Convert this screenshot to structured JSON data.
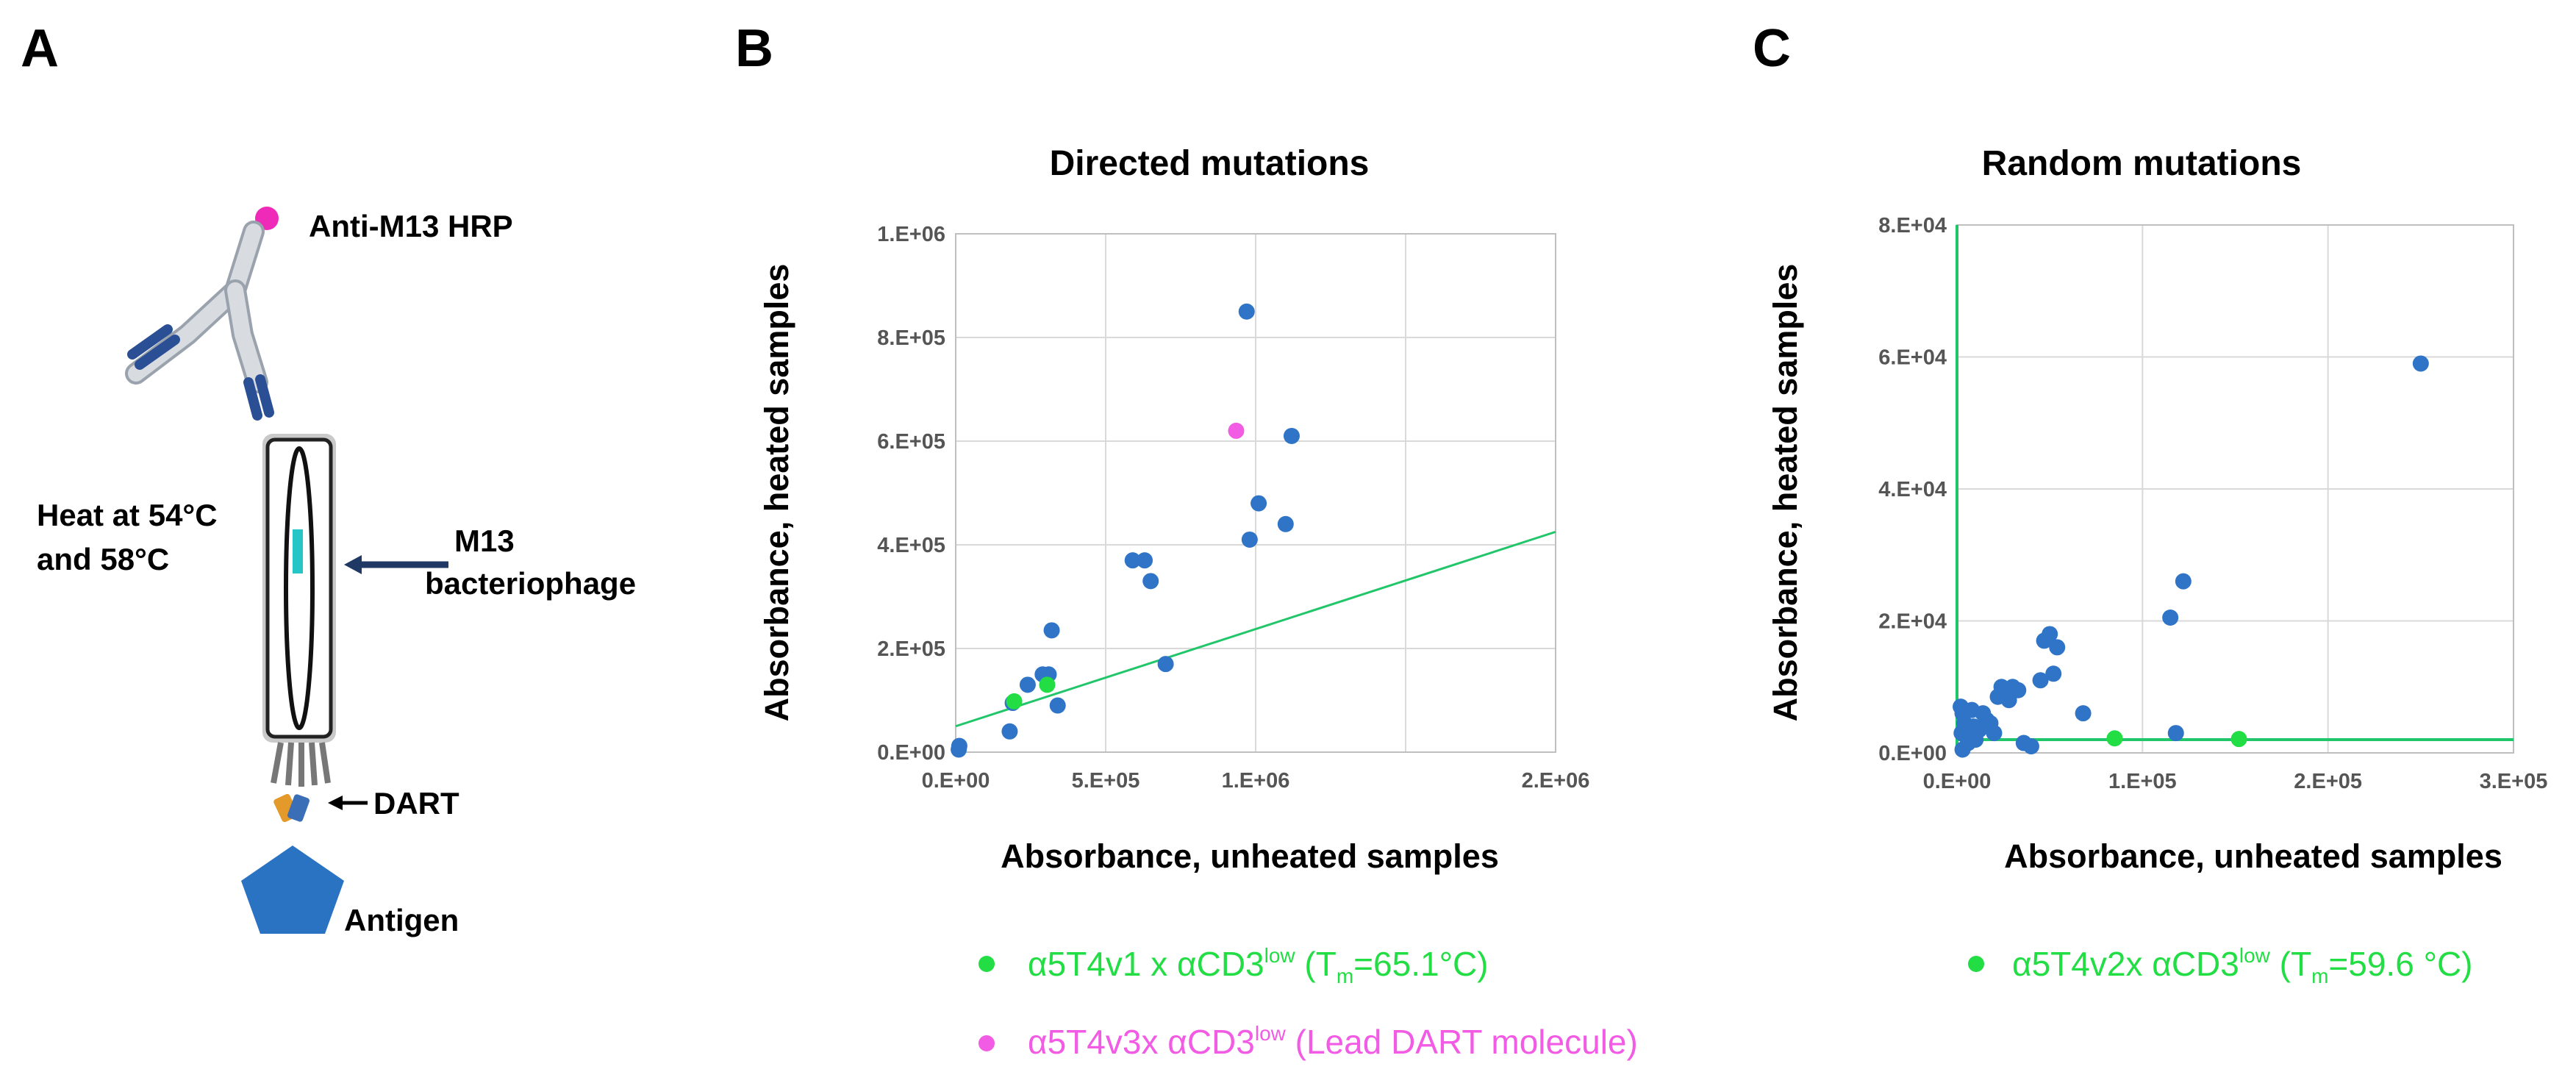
{
  "panel_labels": {
    "a": "A",
    "b": "B",
    "c": "C"
  },
  "diagram": {
    "hrp_label": "Anti-M13 HRP",
    "heat_label_line1": "Heat at 54°C",
    "heat_label_line2": "and 58°C",
    "phage_label_line1": "M13",
    "phage_label_line2": "bacteriophage",
    "dart_label": "DART",
    "antigen_label": "Antigen"
  },
  "colors": {
    "point": "#2f74c7",
    "green": "#22dd44",
    "magenta": "#f25be4",
    "trendline": "#22c66a",
    "hrp": "#f02ab8",
    "dart_orange": "#e49a2a",
    "antigen": "#2a72c2"
  },
  "chart_data": [
    {
      "type": "scatter",
      "title": "Directed mutations",
      "xlabel": "Absorbance, unheated samples",
      "ylabel": "Absorbance,  heated samples",
      "xlim": [
        0,
        2000000
      ],
      "ylim": [
        0,
        1000000
      ],
      "xticks": [
        0,
        500000,
        1000000,
        1500000,
        2000000
      ],
      "xtick_labels": [
        "0.E+00",
        "5.E+05",
        "1.E+06",
        "",
        "2.E+06"
      ],
      "yticks": [
        0,
        200000,
        400000,
        600000,
        800000,
        1000000
      ],
      "ytick_labels": [
        "0.E+00",
        "2.E+05",
        "4.E+05",
        "6.E+05",
        "8.E+05",
        "1.E+06"
      ],
      "trendline": {
        "x": [
          0,
          2000000
        ],
        "y": [
          50000,
          425000
        ]
      },
      "series": [
        {
          "name": "samples",
          "color": "point",
          "points": [
            [
              10000,
              5000
            ],
            [
              12000,
              12000
            ],
            [
              180000,
              40000
            ],
            [
              190000,
              95000
            ],
            [
              240000,
              130000
            ],
            [
              290000,
              150000
            ],
            [
              310000,
              150000
            ],
            [
              320000,
              235000
            ],
            [
              340000,
              90000
            ],
            [
              590000,
              370000
            ],
            [
              630000,
              370000
            ],
            [
              650000,
              330000
            ],
            [
              700000,
              170000
            ],
            [
              970000,
              850000
            ],
            [
              980000,
              410000
            ],
            [
              1010000,
              480000
            ],
            [
              1100000,
              440000
            ],
            [
              1120000,
              610000
            ]
          ]
        },
        {
          "name": "α5T4v1 x αCD3low",
          "color": "green",
          "points": [
            [
              195000,
              98000
            ],
            [
              305000,
              130000
            ]
          ]
        },
        {
          "name": "α5T4v3x αCD3low",
          "color": "magenta",
          "points": [
            [
              935000,
              620000
            ]
          ]
        }
      ],
      "legend": [
        {
          "color": "green",
          "prefix": "α5T4v1 x αCD3",
          "sup": "low",
          "mid": " (T",
          "sub": "m",
          "suffix": "=65.1°C)"
        },
        {
          "color": "magenta",
          "prefix": "α5T4v3x αCD3",
          "sup": "low",
          "mid": " (Lead DART molecule)",
          "sub": "",
          "suffix": ""
        }
      ]
    },
    {
      "type": "scatter",
      "title": "Random mutations",
      "xlabel": "Absorbance, unheated samples",
      "ylabel": "Absorbance, heated samples",
      "xlim": [
        0,
        300000
      ],
      "ylim": [
        0,
        80000
      ],
      "xticks": [
        0,
        100000,
        200000,
        300000
      ],
      "xtick_labels": [
        "0.E+00",
        "1.E+05",
        "2.E+05",
        "3.E+05"
      ],
      "yticks": [
        0,
        20000,
        40000,
        60000,
        80000
      ],
      "ytick_labels": [
        "0.E+00",
        "2.E+04",
        "4.E+04",
        "6.E+04",
        "8.E+04"
      ],
      "hline": 2000,
      "vline": 0,
      "series": [
        {
          "name": "samples",
          "color": "point",
          "points": [
            [
              2000,
              7000
            ],
            [
              3000,
              6000
            ],
            [
              4000,
              4500
            ],
            [
              2500,
              3000
            ],
            [
              5000,
              2500
            ],
            [
              6000,
              1500
            ],
            [
              3000,
              500
            ],
            [
              8000,
              6500
            ],
            [
              9000,
              4000
            ],
            [
              10000,
              2000
            ],
            [
              12000,
              3500
            ],
            [
              14000,
              6000
            ],
            [
              16000,
              5000
            ],
            [
              18000,
              4500
            ],
            [
              20000,
              3000
            ],
            [
              22000,
              8500
            ],
            [
              24000,
              10000
            ],
            [
              26000,
              9500
            ],
            [
              28000,
              8000
            ],
            [
              30000,
              10000
            ],
            [
              33000,
              9500
            ],
            [
              36000,
              1500
            ],
            [
              40000,
              1000
            ],
            [
              45000,
              11000
            ],
            [
              47000,
              17000
            ],
            [
              50000,
              18000
            ],
            [
              52000,
              12000
            ],
            [
              54000,
              16000
            ],
            [
              68000,
              6000
            ],
            [
              115000,
              20500
            ],
            [
              118000,
              3000
            ],
            [
              122000,
              26000
            ],
            [
              250000,
              59000
            ]
          ]
        },
        {
          "name": "α5T4v2x αCD3low",
          "color": "green",
          "points": [
            [
              85000,
              2200
            ],
            [
              152000,
              2100
            ]
          ]
        }
      ],
      "legend": [
        {
          "color": "green",
          "prefix": "α5T4v2x αCD3",
          "sup": "low",
          "mid": " (T",
          "sub": "m",
          "suffix": "=59.6 °C)"
        }
      ]
    }
  ]
}
